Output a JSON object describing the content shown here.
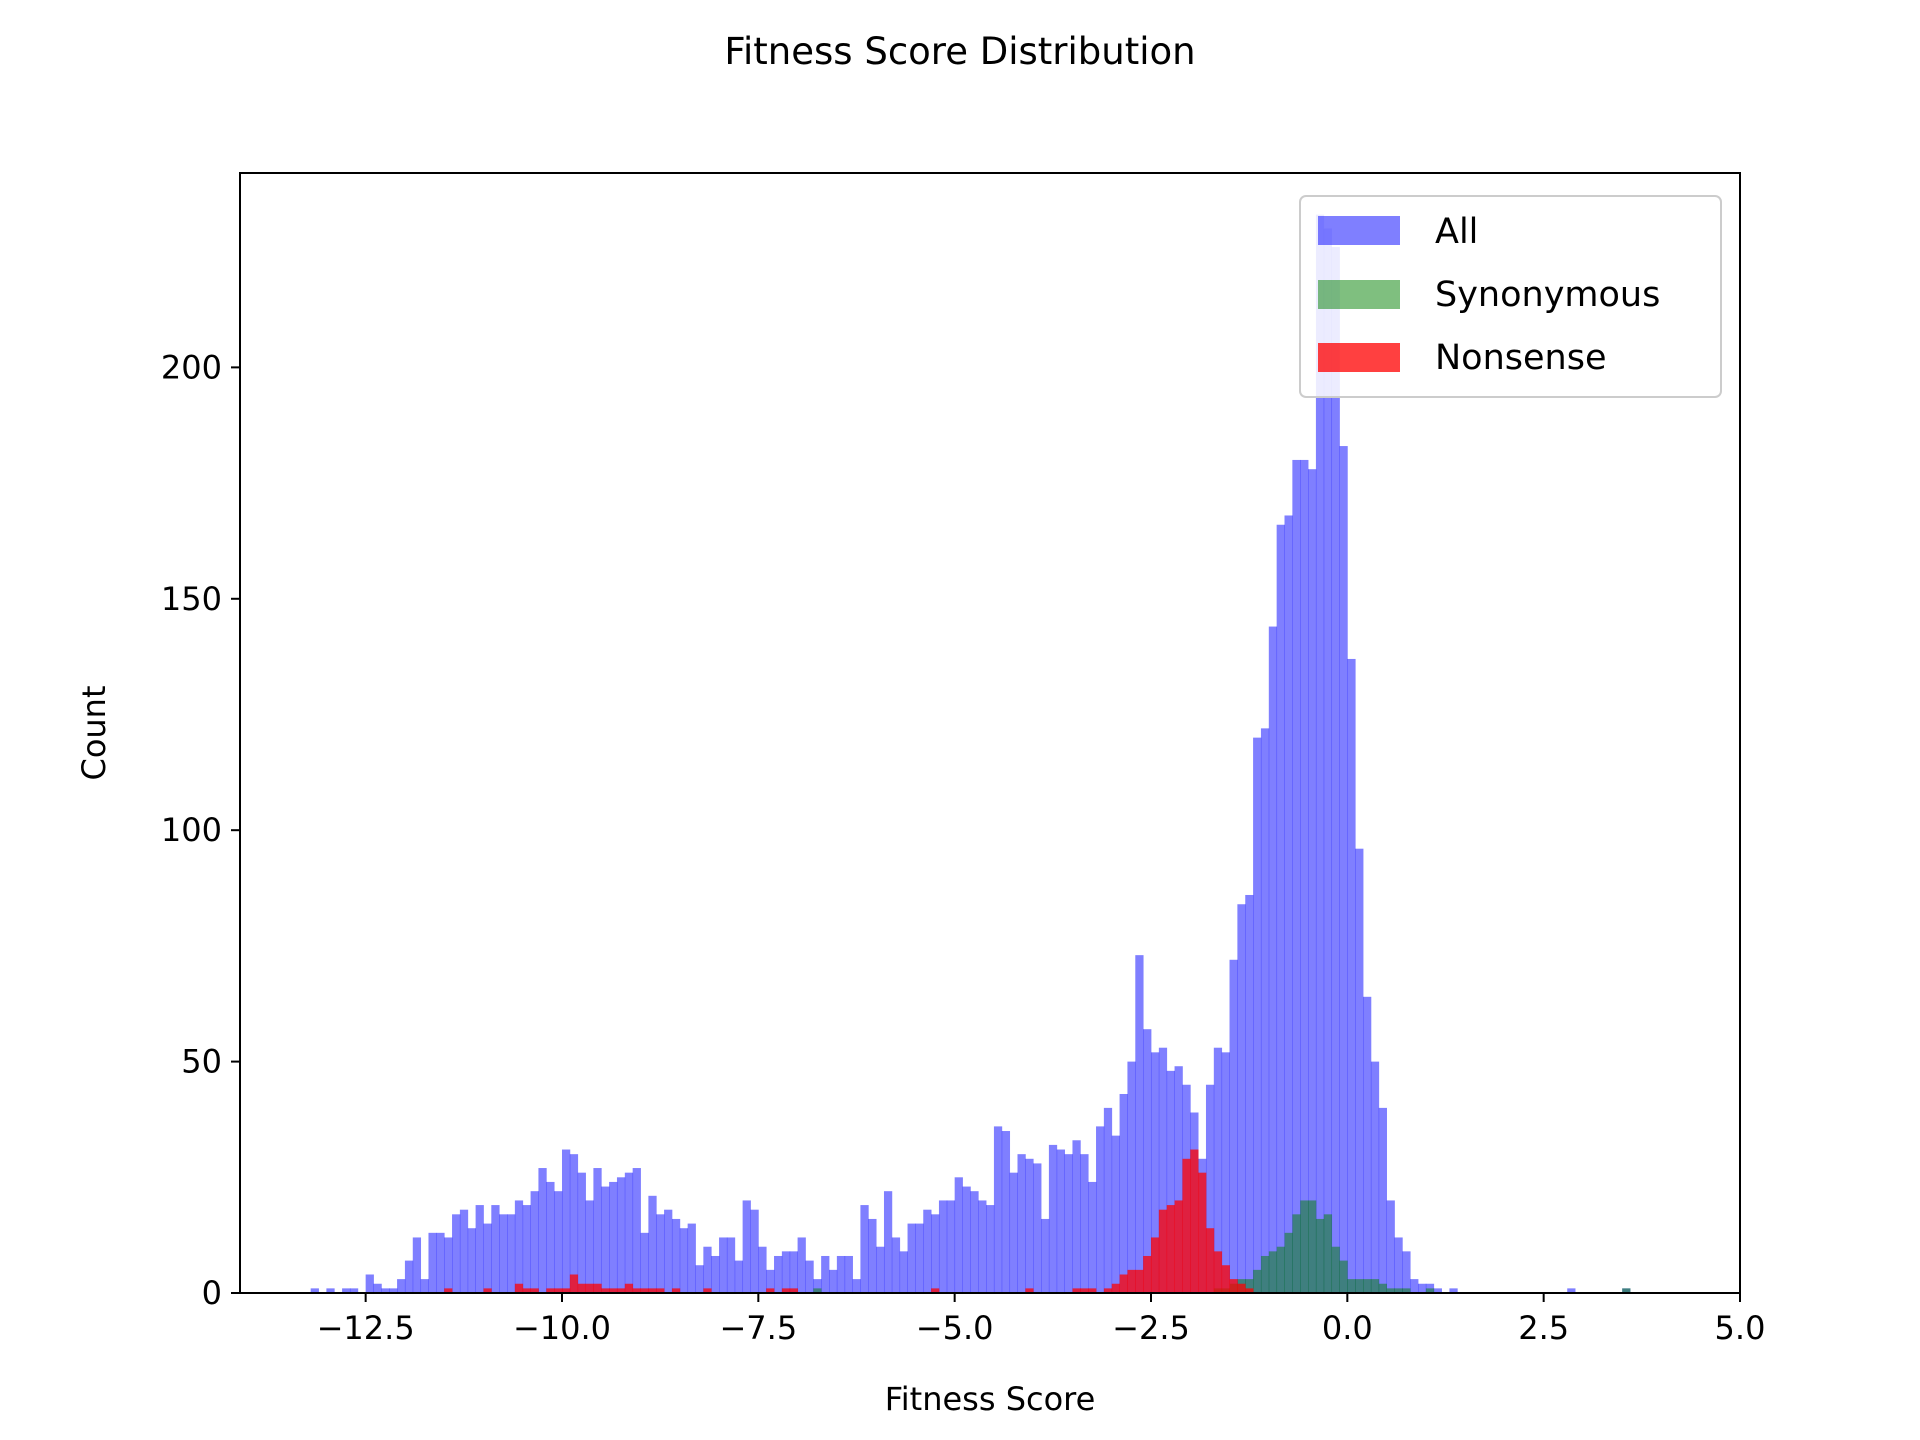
{
  "chart_data": {
    "type": "bar",
    "title": "Fitness Score Distribution",
    "xlabel": "Fitness Score",
    "ylabel": "Count",
    "xlim": [
      -14.1,
      5.0
    ],
    "ylim": [
      0,
      242
    ],
    "xticks": [
      -12.5,
      -10.0,
      -7.5,
      -5.0,
      -2.5,
      0.0,
      2.5,
      5.0
    ],
    "xtick_labels": [
      "−12.5",
      "−10.0",
      "−7.5",
      "−5.0",
      "−2.5",
      "0.0",
      "2.5",
      "5.0"
    ],
    "yticks": [
      0,
      50,
      100,
      150,
      200
    ],
    "ytick_labels": [
      "0",
      "50",
      "100",
      "150",
      "200"
    ],
    "bin_start": -13.2,
    "bin_width": 0.1,
    "grid": false,
    "legend_position": "top-right",
    "series": [
      {
        "name": "All",
        "color": "#0000ff",
        "alpha": 0.5,
        "values": [
          1,
          0,
          1,
          0,
          1,
          1,
          0,
          4,
          2,
          1,
          1,
          3,
          7,
          12,
          3,
          13,
          13,
          12,
          17,
          18,
          14,
          19,
          15,
          19,
          17,
          17,
          20,
          19,
          22,
          27,
          24,
          22,
          31,
          30,
          26,
          20,
          27,
          23,
          24,
          25,
          26,
          27,
          13,
          21,
          17,
          18,
          16,
          14,
          15,
          6,
          10,
          8,
          12,
          12,
          7,
          20,
          18,
          10,
          5,
          8,
          9,
          9,
          12,
          7,
          3,
          8,
          5,
          8,
          8,
          3,
          19,
          16,
          10,
          22,
          12,
          9,
          15,
          15,
          18,
          17,
          20,
          20,
          25,
          23,
          22,
          20,
          19,
          36,
          35,
          26,
          30,
          29,
          28,
          16,
          32,
          31,
          30,
          33,
          30,
          24,
          36,
          40,
          34,
          43,
          50,
          73,
          57,
          52,
          53,
          48,
          49,
          45,
          39,
          29,
          45,
          53,
          52,
          72,
          84,
          86,
          120,
          122,
          144,
          166,
          168,
          180,
          180,
          178,
          233,
          230,
          226,
          183,
          137,
          96,
          64,
          50,
          40,
          20,
          12,
          9,
          3,
          2,
          2,
          1,
          0,
          1,
          0,
          0,
          0,
          0,
          0,
          0,
          0,
          0,
          0,
          0,
          0,
          0,
          0,
          0,
          1,
          0,
          0,
          0,
          0,
          0,
          0,
          1,
          0
        ]
      },
      {
        "name": "Synonymous",
        "color": "#008000",
        "alpha": 0.5,
        "values": [
          0,
          0,
          0,
          0,
          0,
          0,
          0,
          0,
          0,
          0,
          0,
          0,
          0,
          0,
          0,
          0,
          0,
          0,
          0,
          0,
          0,
          0,
          0,
          0,
          0,
          0,
          0,
          0,
          0,
          0,
          0,
          0,
          0,
          0,
          0,
          0,
          0,
          0,
          0,
          0,
          0,
          0,
          0,
          0,
          0,
          0,
          0,
          0,
          0,
          0,
          0,
          0,
          0,
          0,
          0,
          0,
          0,
          0,
          0,
          0,
          0,
          0,
          0,
          0,
          1,
          0,
          0,
          0,
          0,
          0,
          0,
          0,
          0,
          0,
          0,
          0,
          0,
          0,
          0,
          0,
          0,
          0,
          0,
          0,
          0,
          0,
          0,
          0,
          0,
          0,
          0,
          0,
          0,
          0,
          0,
          0,
          0,
          0,
          0,
          0,
          0,
          0,
          0,
          0,
          0,
          0,
          0,
          0,
          0,
          0,
          0,
          0,
          0,
          0,
          0,
          1,
          1,
          2,
          3,
          3,
          5,
          8,
          9,
          10,
          13,
          17,
          20,
          20,
          16,
          17,
          10,
          7,
          3,
          3,
          3,
          3,
          2,
          1,
          1,
          1,
          0,
          0,
          1,
          0,
          0,
          0,
          0,
          0,
          0,
          0,
          0,
          0,
          0,
          0,
          0,
          0,
          0,
          0,
          0,
          0,
          0,
          0,
          0,
          0,
          0,
          0,
          0,
          1,
          0
        ]
      },
      {
        "name": "Nonsense",
        "color": "#ff0000",
        "alpha": 0.75,
        "values": [
          0,
          0,
          0,
          0,
          0,
          0,
          0,
          0,
          0,
          0,
          0,
          0,
          0,
          0,
          0,
          0,
          0,
          1,
          0,
          0,
          0,
          0,
          1,
          0,
          0,
          0,
          2,
          1,
          1,
          0,
          1,
          1,
          1,
          4,
          2,
          2,
          2,
          1,
          1,
          1,
          2,
          1,
          1,
          1,
          1,
          0,
          1,
          0,
          0,
          0,
          1,
          0,
          0,
          0,
          0,
          0,
          0,
          0,
          1,
          0,
          1,
          1,
          0,
          0,
          0,
          0,
          0,
          0,
          0,
          0,
          0,
          0,
          0,
          0,
          0,
          0,
          0,
          0,
          0,
          1,
          0,
          0,
          0,
          0,
          0,
          0,
          0,
          0,
          0,
          0,
          0,
          1,
          0,
          0,
          0,
          0,
          0,
          1,
          1,
          1,
          0,
          1,
          2,
          4,
          5,
          5,
          8,
          12,
          18,
          19,
          20,
          29,
          31,
          26,
          14,
          9,
          6,
          3,
          2,
          1,
          0,
          0,
          0,
          0,
          0,
          0,
          0,
          0,
          0,
          0,
          0,
          0,
          0,
          0,
          0,
          0,
          0,
          0,
          0,
          0,
          0,
          0,
          0,
          0,
          0,
          0,
          0,
          0,
          0,
          0,
          0,
          0,
          0,
          0,
          0,
          0,
          0,
          0,
          0,
          0,
          0,
          0,
          0,
          0,
          0,
          0,
          0,
          0,
          0
        ]
      }
    ]
  }
}
